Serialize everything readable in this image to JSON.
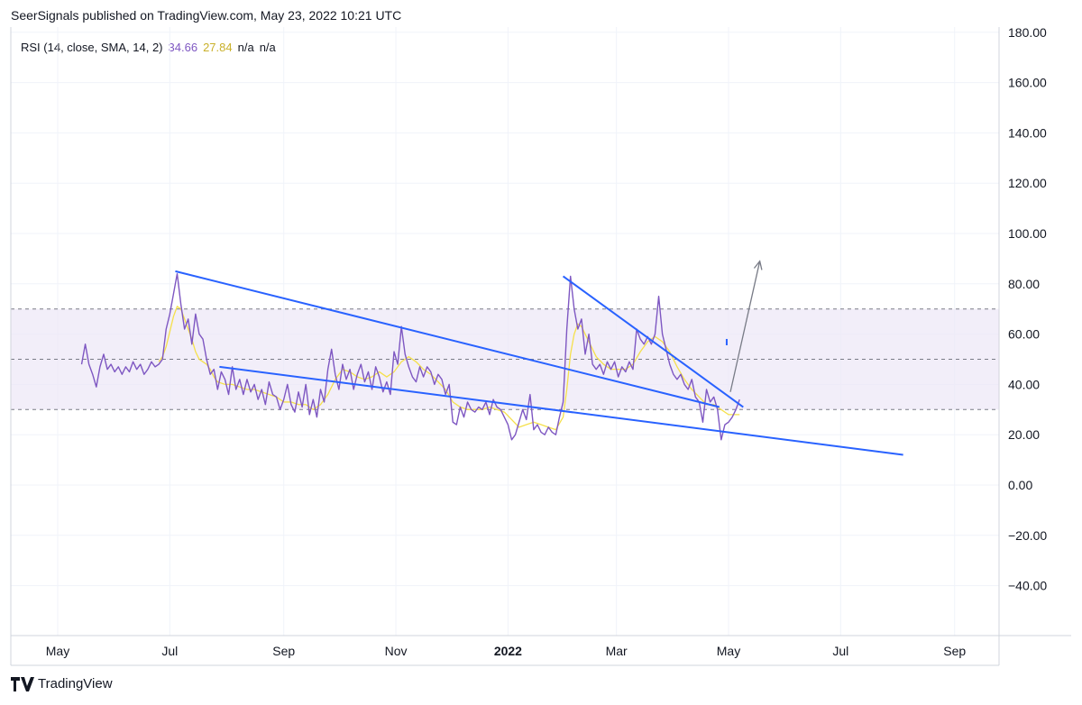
{
  "header": {
    "published": "SeerSignals published on TradingView.com, May 23, 2022 10:21 UTC"
  },
  "legend": {
    "indicator": "RSI (14, close, SMA, 14, 2)",
    "rsi_value": "34.66",
    "sma_value": "27.84",
    "na1": "n/a",
    "na2": "n/a"
  },
  "footer": {
    "brand": "TradingView"
  },
  "colors": {
    "rsi": "#7e57c2",
    "sma": "#f5e04b",
    "trendline": "#2962ff",
    "arrow": "#787b86",
    "band_fill": "#ede7f6",
    "band_line": "#787b86",
    "grid": "#f0f3fa",
    "text": "#131722"
  },
  "chart_data": {
    "type": "line",
    "title": "RSI (14, close, SMA, 14, 2)",
    "ylim": [
      -55,
      183
    ],
    "y_ticks": [
      "180.00",
      "160.00",
      "140.00",
      "120.00",
      "100.00",
      "80.00",
      "60.00",
      "40.00",
      "20.00",
      "0.00",
      "−20.00",
      "−40.00"
    ],
    "y_tick_values": [
      180,
      160,
      140,
      120,
      100,
      80,
      60,
      40,
      20,
      0,
      -20,
      -40
    ],
    "x_ticks": [
      {
        "label": "May",
        "day": 0
      },
      {
        "label": "Jul",
        "day": 61
      },
      {
        "label": "Sep",
        "day": 123
      },
      {
        "label": "Nov",
        "day": 184
      },
      {
        "label": "2022",
        "day": 245,
        "bold": true
      },
      {
        "label": "Mar",
        "day": 304
      },
      {
        "label": "May",
        "day": 365
      },
      {
        "label": "Jul",
        "day": 426
      },
      {
        "label": "Sep",
        "day": 488
      }
    ],
    "bands": {
      "upper": 70,
      "middle": 50,
      "lower": 30
    },
    "rsi_series": [
      [
        13,
        48
      ],
      [
        15,
        56
      ],
      [
        17,
        48
      ],
      [
        19,
        44
      ],
      [
        21,
        39
      ],
      [
        23,
        47
      ],
      [
        25,
        52
      ],
      [
        27,
        46
      ],
      [
        29,
        48
      ],
      [
        31,
        45
      ],
      [
        33,
        47
      ],
      [
        35,
        44
      ],
      [
        37,
        47
      ],
      [
        39,
        45
      ],
      [
        41,
        49
      ],
      [
        43,
        46
      ],
      [
        45,
        48
      ],
      [
        47,
        44
      ],
      [
        49,
        46
      ],
      [
        51,
        49
      ],
      [
        53,
        47
      ],
      [
        55,
        48
      ],
      [
        57,
        50
      ],
      [
        59,
        62
      ],
      [
        61,
        68
      ],
      [
        63,
        76
      ],
      [
        65,
        84
      ],
      [
        67,
        72
      ],
      [
        69,
        62
      ],
      [
        71,
        66
      ],
      [
        73,
        56
      ],
      [
        75,
        68
      ],
      [
        77,
        60
      ],
      [
        79,
        58
      ],
      [
        81,
        50
      ],
      [
        83,
        44
      ],
      [
        85,
        46
      ],
      [
        87,
        38
      ],
      [
        89,
        45
      ],
      [
        91,
        42
      ],
      [
        93,
        36
      ],
      [
        95,
        47
      ],
      [
        97,
        38
      ],
      [
        99,
        42
      ],
      [
        101,
        36
      ],
      [
        103,
        42
      ],
      [
        105,
        37
      ],
      [
        107,
        40
      ],
      [
        109,
        34
      ],
      [
        111,
        38
      ],
      [
        113,
        32
      ],
      [
        115,
        41
      ],
      [
        117,
        36
      ],
      [
        119,
        35
      ],
      [
        121,
        30
      ],
      [
        123,
        34
      ],
      [
        125,
        40
      ],
      [
        127,
        32
      ],
      [
        129,
        29
      ],
      [
        131,
        37
      ],
      [
        133,
        31
      ],
      [
        135,
        40
      ],
      [
        137,
        28
      ],
      [
        139,
        34
      ],
      [
        141,
        27
      ],
      [
        143,
        38
      ],
      [
        145,
        33
      ],
      [
        147,
        46
      ],
      [
        149,
        54
      ],
      [
        151,
        44
      ],
      [
        153,
        38
      ],
      [
        155,
        48
      ],
      [
        157,
        42
      ],
      [
        159,
        46
      ],
      [
        161,
        38
      ],
      [
        163,
        44
      ],
      [
        165,
        48
      ],
      [
        167,
        41
      ],
      [
        169,
        45
      ],
      [
        171,
        38
      ],
      [
        173,
        47
      ],
      [
        175,
        43
      ],
      [
        177,
        37
      ],
      [
        179,
        41
      ],
      [
        181,
        36
      ],
      [
        183,
        53
      ],
      [
        185,
        48
      ],
      [
        187,
        63
      ],
      [
        189,
        52
      ],
      [
        191,
        47
      ],
      [
        193,
        43
      ],
      [
        195,
        41
      ],
      [
        197,
        47
      ],
      [
        199,
        43
      ],
      [
        201,
        47
      ],
      [
        203,
        45
      ],
      [
        205,
        40
      ],
      [
        207,
        44
      ],
      [
        209,
        42
      ],
      [
        211,
        36
      ],
      [
        213,
        40
      ],
      [
        215,
        25
      ],
      [
        217,
        24
      ],
      [
        219,
        31
      ],
      [
        221,
        27
      ],
      [
        223,
        33
      ],
      [
        225,
        30
      ],
      [
        227,
        29
      ],
      [
        229,
        31
      ],
      [
        231,
        30
      ],
      [
        233,
        33
      ],
      [
        235,
        28
      ],
      [
        237,
        34
      ],
      [
        239,
        31
      ],
      [
        241,
        30
      ],
      [
        243,
        27
      ],
      [
        245,
        24
      ],
      [
        247,
        18
      ],
      [
        249,
        20
      ],
      [
        251,
        25
      ],
      [
        253,
        30
      ],
      [
        255,
        26
      ],
      [
        257,
        36
      ],
      [
        259,
        22
      ],
      [
        261,
        24
      ],
      [
        263,
        21
      ],
      [
        265,
        20
      ],
      [
        267,
        23
      ],
      [
        269,
        21
      ],
      [
        271,
        20
      ],
      [
        273,
        27
      ],
      [
        275,
        33
      ],
      [
        277,
        62
      ],
      [
        279,
        83
      ],
      [
        281,
        70
      ],
      [
        283,
        62
      ],
      [
        285,
        66
      ],
      [
        287,
        52
      ],
      [
        289,
        60
      ],
      [
        291,
        48
      ],
      [
        293,
        46
      ],
      [
        295,
        48
      ],
      [
        297,
        44
      ],
      [
        299,
        49
      ],
      [
        301,
        46
      ],
      [
        303,
        49
      ],
      [
        305,
        43
      ],
      [
        307,
        47
      ],
      [
        309,
        45
      ],
      [
        311,
        49
      ],
      [
        313,
        46
      ],
      [
        315,
        62
      ],
      [
        317,
        58
      ],
      [
        319,
        56
      ],
      [
        321,
        59
      ],
      [
        323,
        56
      ],
      [
        325,
        60
      ],
      [
        327,
        75
      ],
      [
        329,
        60
      ],
      [
        331,
        54
      ],
      [
        333,
        48
      ],
      [
        335,
        44
      ],
      [
        337,
        42
      ],
      [
        339,
        44
      ],
      [
        341,
        40
      ],
      [
        343,
        38
      ],
      [
        345,
        42
      ],
      [
        347,
        35
      ],
      [
        349,
        33
      ],
      [
        351,
        25
      ],
      [
        353,
        38
      ],
      [
        355,
        33
      ],
      [
        357,
        35
      ],
      [
        359,
        30
      ],
      [
        361,
        18
      ],
      [
        363,
        24
      ],
      [
        365,
        25
      ],
      [
        367,
        27
      ],
      [
        369,
        30
      ],
      [
        371,
        34
      ]
    ],
    "sma_series": [
      [
        55,
        49
      ],
      [
        57,
        51
      ],
      [
        59,
        55
      ],
      [
        61,
        61
      ],
      [
        63,
        67
      ],
      [
        65,
        71
      ],
      [
        67,
        70
      ],
      [
        69,
        66
      ],
      [
        71,
        62
      ],
      [
        73,
        58
      ],
      [
        75,
        53
      ],
      [
        77,
        50
      ],
      [
        79,
        49
      ],
      [
        81,
        48
      ],
      [
        83,
        46
      ],
      [
        85,
        43
      ],
      [
        87,
        41
      ],
      [
        91,
        40
      ],
      [
        95,
        40
      ],
      [
        99,
        39
      ],
      [
        103,
        38
      ],
      [
        107,
        38
      ],
      [
        111,
        37
      ],
      [
        115,
        36
      ],
      [
        119,
        35
      ],
      [
        123,
        33
      ],
      [
        127,
        33
      ],
      [
        131,
        32
      ],
      [
        135,
        32
      ],
      [
        139,
        30
      ],
      [
        143,
        32
      ],
      [
        147,
        36
      ],
      [
        151,
        42
      ],
      [
        155,
        46
      ],
      [
        159,
        45
      ],
      [
        163,
        43
      ],
      [
        167,
        42
      ],
      [
        171,
        43
      ],
      [
        175,
        45
      ],
      [
        179,
        43
      ],
      [
        183,
        45
      ],
      [
        187,
        49
      ],
      [
        191,
        51
      ],
      [
        195,
        49
      ],
      [
        199,
        46
      ],
      [
        203,
        44
      ],
      [
        207,
        41
      ],
      [
        211,
        38
      ],
      [
        215,
        33
      ],
      [
        219,
        31
      ],
      [
        223,
        30
      ],
      [
        227,
        30
      ],
      [
        231,
        30
      ],
      [
        235,
        31
      ],
      [
        239,
        30
      ],
      [
        243,
        29
      ],
      [
        247,
        26
      ],
      [
        251,
        23
      ],
      [
        255,
        24
      ],
      [
        259,
        25
      ],
      [
        263,
        24
      ],
      [
        267,
        23
      ],
      [
        271,
        22
      ],
      [
        275,
        27
      ],
      [
        277,
        38
      ],
      [
        279,
        52
      ],
      [
        281,
        60
      ],
      [
        283,
        64
      ],
      [
        285,
        63
      ],
      [
        289,
        57
      ],
      [
        293,
        51
      ],
      [
        297,
        48
      ],
      [
        301,
        46
      ],
      [
        305,
        46
      ],
      [
        309,
        46
      ],
      [
        313,
        48
      ],
      [
        317,
        53
      ],
      [
        321,
        57
      ],
      [
        325,
        59
      ],
      [
        329,
        57
      ],
      [
        333,
        53
      ],
      [
        337,
        47
      ],
      [
        341,
        42
      ],
      [
        345,
        38
      ],
      [
        349,
        35
      ],
      [
        353,
        32
      ],
      [
        357,
        32
      ],
      [
        361,
        30
      ],
      [
        365,
        28
      ],
      [
        369,
        28
      ],
      [
        371,
        28
      ]
    ],
    "trendlines": [
      {
        "from": [
          64,
          85
        ],
        "to": [
          360,
          31
        ]
      },
      {
        "from": [
          88,
          47
        ],
        "to": [
          460,
          12
        ]
      },
      {
        "from": [
          275,
          83
        ],
        "to": [
          373,
          31
        ]
      }
    ],
    "arrow": {
      "from": [
        366,
        37
      ],
      "to": [
        382,
        89
      ]
    },
    "marker": {
      "day": 364,
      "value": 57
    }
  }
}
